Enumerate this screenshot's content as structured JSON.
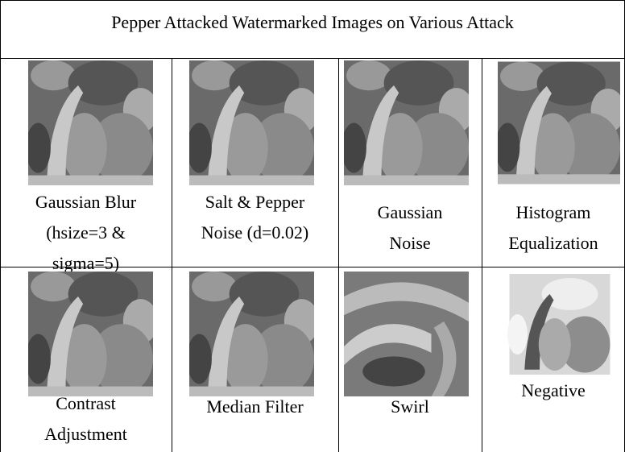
{
  "table": {
    "title": "Pepper Attacked Watermarked Images on Various Attack",
    "rows": [
      [
        {
          "caption": [
            "Gaussian Blur",
            "(hsize=3 &",
            "sigma=5)"
          ]
        },
        {
          "caption": [
            "Salt & Pepper",
            "Noise (d=0.02)"
          ]
        },
        {
          "caption": [
            "Gaussian",
            "Noise"
          ]
        },
        {
          "caption": [
            "Histogram",
            "Equalization"
          ]
        }
      ],
      [
        {
          "caption": [
            "Contrast",
            "Adjustment"
          ]
        },
        {
          "caption": [
            "Median Filter"
          ]
        },
        {
          "caption": [
            "Swirl"
          ]
        },
        {
          "caption": [
            "Negative"
          ]
        }
      ]
    ]
  }
}
